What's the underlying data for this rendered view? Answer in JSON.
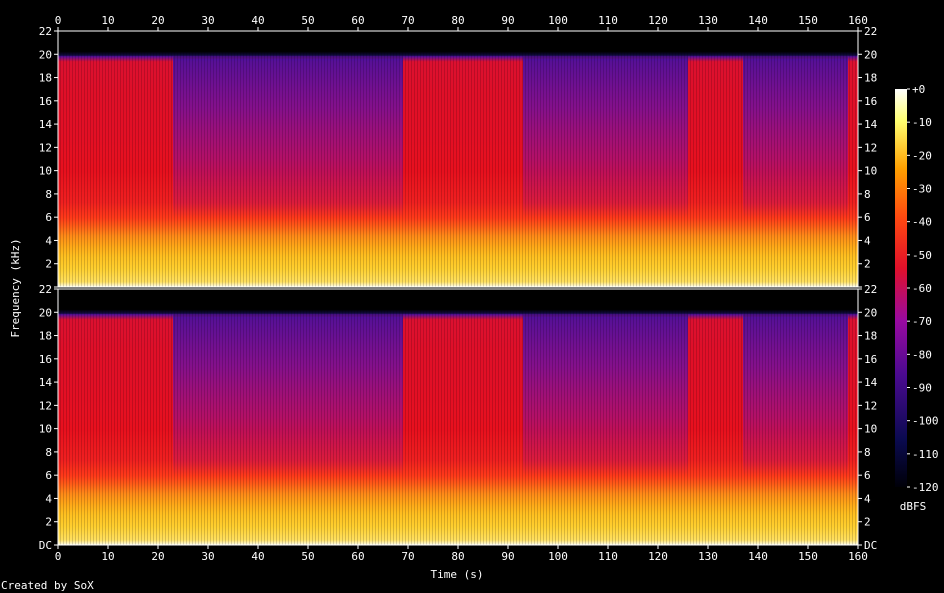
{
  "chart_data": {
    "type": "heatmap",
    "xlabel": "Time (s)",
    "ylabel": "Frequency (kHz)",
    "xlim": [
      0,
      160
    ],
    "ylim_khz": [
      0,
      22
    ],
    "x_ticks": [
      0,
      10,
      20,
      30,
      40,
      50,
      60,
      70,
      80,
      90,
      100,
      110,
      120,
      130,
      140,
      150,
      160
    ],
    "y_ticks": [
      {
        "value": 0,
        "label": "DC"
      },
      {
        "value": 2,
        "label": "2"
      },
      {
        "value": 4,
        "label": "4"
      },
      {
        "value": 6,
        "label": "6"
      },
      {
        "value": 8,
        "label": "8"
      },
      {
        "value": 10,
        "label": "10"
      },
      {
        "value": 12,
        "label": "12"
      },
      {
        "value": 14,
        "label": "14"
      },
      {
        "value": 16,
        "label": "16"
      },
      {
        "value": 18,
        "label": "18"
      },
      {
        "value": 20,
        "label": "20"
      },
      {
        "value": 22,
        "label": "22"
      }
    ],
    "channels": 2,
    "bandwidth_khz": 20,
    "quiet_time_ranges_s": [
      [
        23,
        69
      ],
      [
        93,
        126
      ],
      [
        137,
        158
      ]
    ],
    "colorbar": {
      "unit": "dBFS",
      "range": [
        -120,
        0
      ],
      "ticks": [
        0,
        -10,
        -20,
        -30,
        -40,
        -50,
        -60,
        -70,
        -80,
        -90,
        -100,
        -110,
        -120
      ],
      "tick_labels": [
        "+0",
        "-10",
        "-20",
        "-30",
        "-40",
        "-50",
        "-60",
        "-70",
        "-80",
        "-90",
        "-100",
        "-110",
        "-120"
      ]
    },
    "footer": "Created by SoX",
    "colors": {
      "background": "#000000",
      "low": "#000010",
      "mid_low": "#5a10a0",
      "mid": "#e01030",
      "mid_high": "#ff8000",
      "high": "#ffff80",
      "peak": "#ffffff"
    }
  }
}
